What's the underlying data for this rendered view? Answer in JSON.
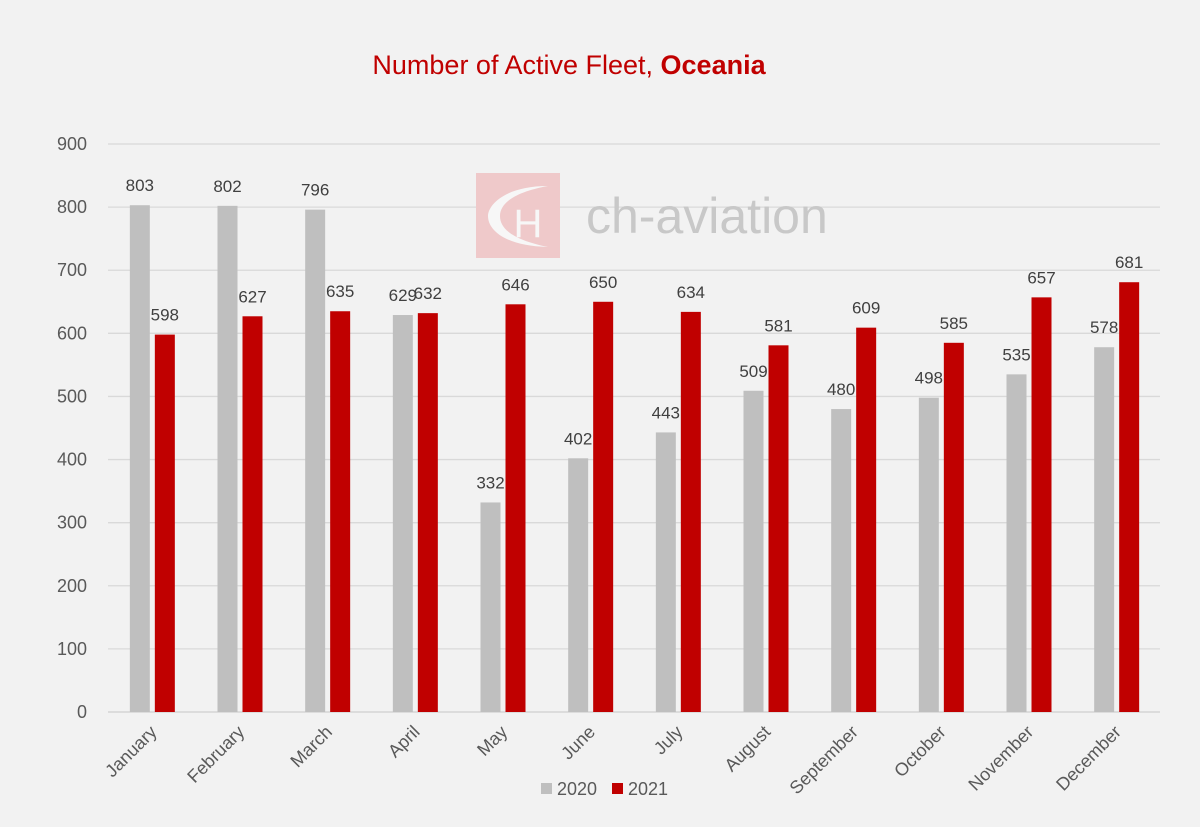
{
  "chart_data": {
    "type": "bar",
    "title": "Number of Active Fleet, ",
    "title_bold": "Oceania",
    "xlabel": "",
    "ylabel": "",
    "ylim": [
      0,
      900
    ],
    "yticks": [
      0,
      100,
      200,
      300,
      400,
      500,
      600,
      700,
      800,
      900
    ],
    "grid": true,
    "legend_position": "bottom",
    "categories": [
      "January",
      "February",
      "March",
      "April",
      "May",
      "June",
      "July",
      "August",
      "September",
      "October",
      "November",
      "December"
    ],
    "series": [
      {
        "name": "2020",
        "color": "#bfbfbf",
        "values": [
          803,
          802,
          796,
          629,
          332,
          402,
          443,
          509,
          480,
          498,
          535,
          578
        ]
      },
      {
        "name": "2021",
        "color": "#c00000",
        "values": [
          598,
          627,
          635,
          632,
          646,
          650,
          634,
          581,
          609,
          585,
          657,
          681
        ]
      }
    ]
  },
  "watermark": {
    "text": "ch-aviation",
    "logo_letters": "CH"
  },
  "colors": {
    "title": "#c00000",
    "text": "#404040",
    "grid": "#d9d9d9",
    "background": "#f2f2f2"
  }
}
